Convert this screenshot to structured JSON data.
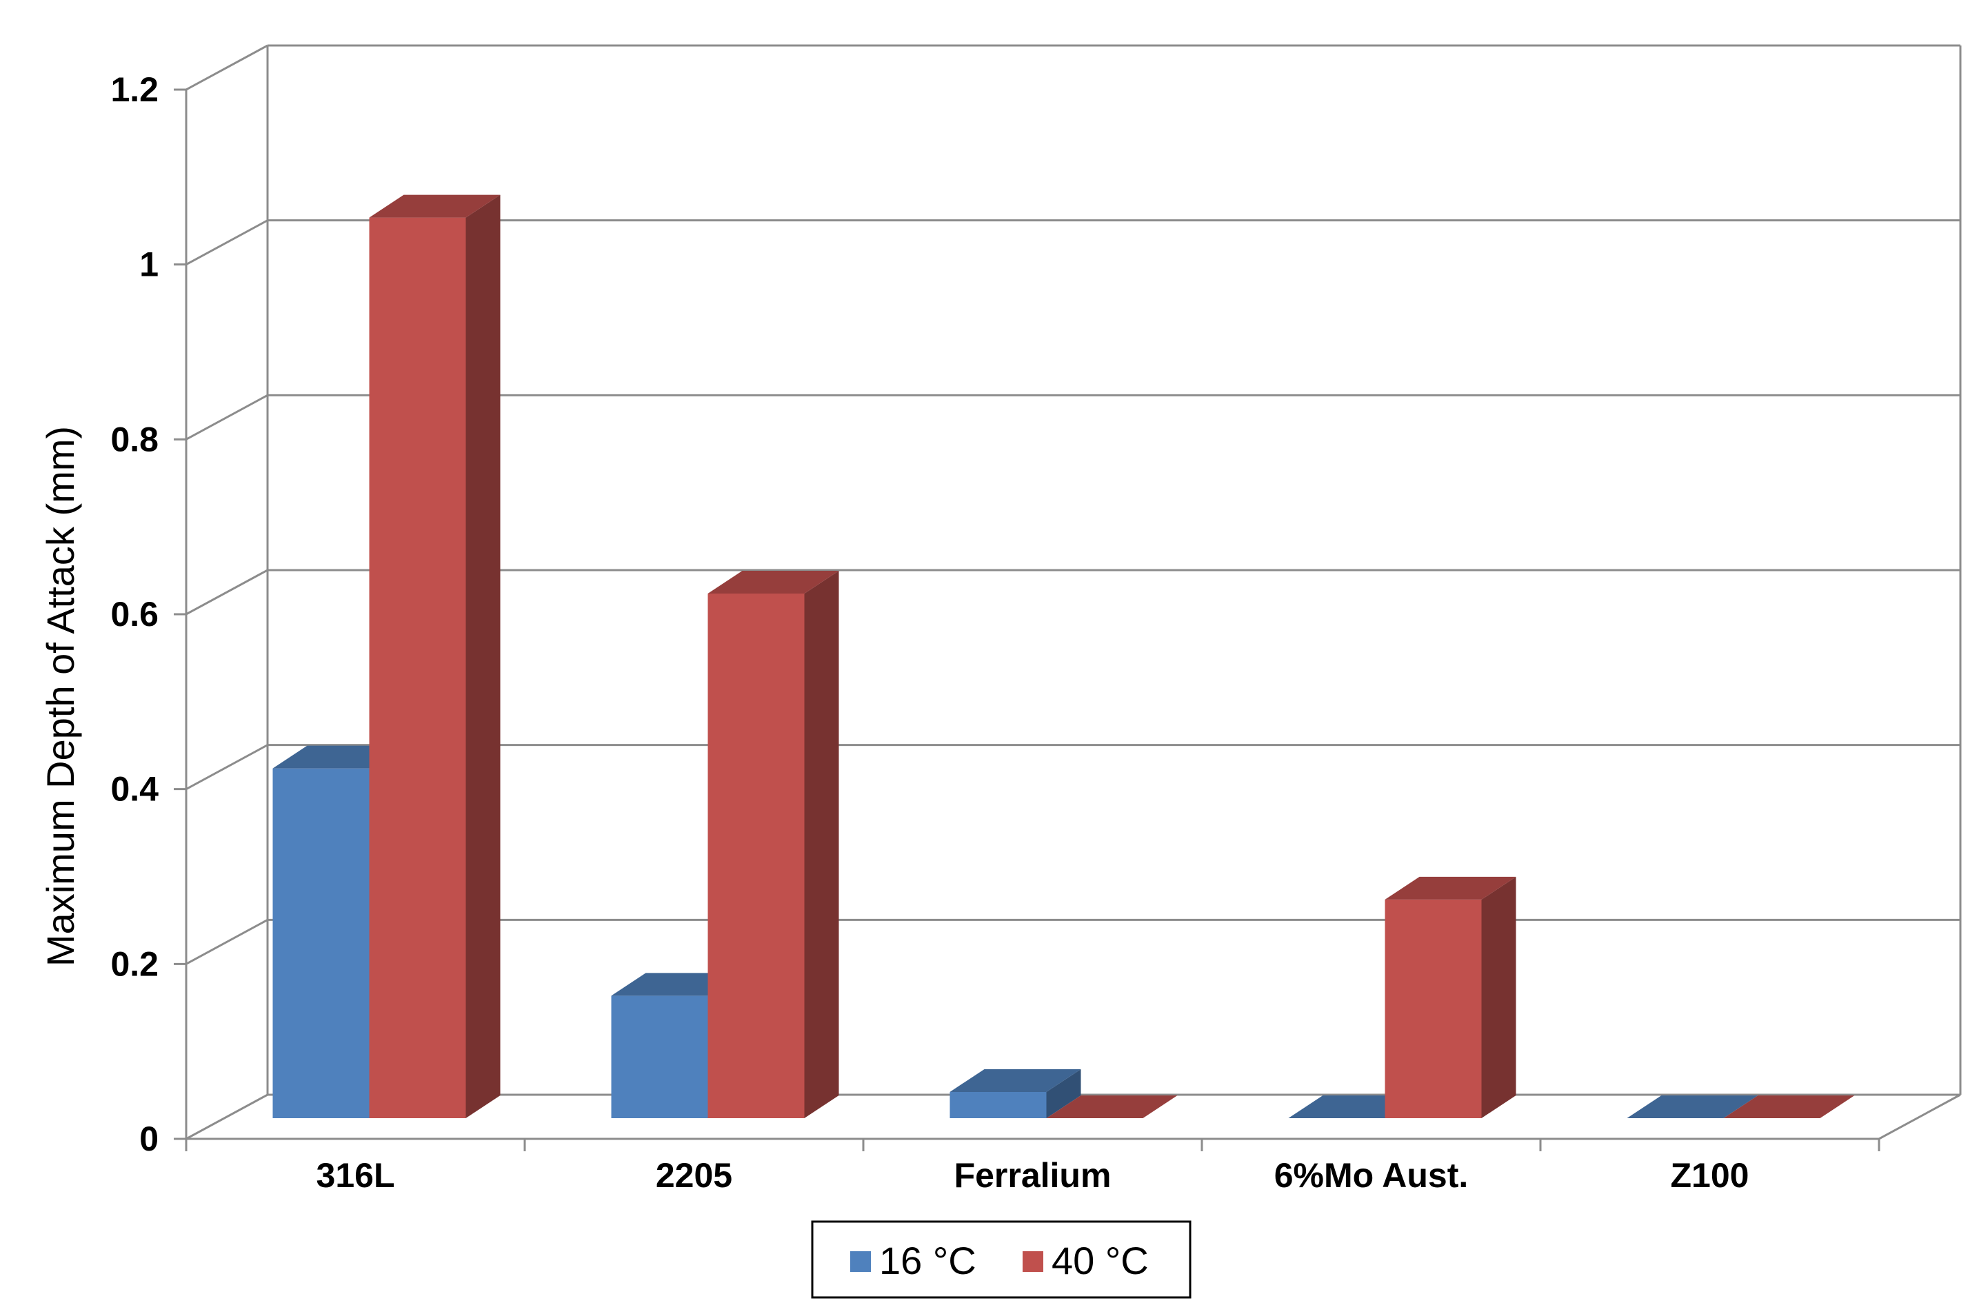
{
  "chart_data": {
    "type": "bar",
    "style": "3d-clustered-column",
    "title": "",
    "xlabel": "",
    "ylabel": "Maximum Depth of Attack (mm)",
    "ylim": [
      0,
      1.2
    ],
    "yticks": [
      "0",
      "0.2",
      "0.4",
      "0.6",
      "0.8",
      "1",
      "1.2"
    ],
    "categories": [
      "316L",
      "2205",
      "Ferralium",
      "6%Mo Aust.",
      "Z100"
    ],
    "series": [
      {
        "name": "16 °C",
        "values": [
          0.4,
          0.14,
          0.03,
          0.0,
          0.0
        ],
        "color": "#4F81BD"
      },
      {
        "name": "40 °C",
        "values": [
          1.03,
          0.6,
          0.0,
          0.25,
          0.0
        ],
        "color": "#C0504D"
      }
    ],
    "grid": true,
    "legend_position": "bottom"
  }
}
